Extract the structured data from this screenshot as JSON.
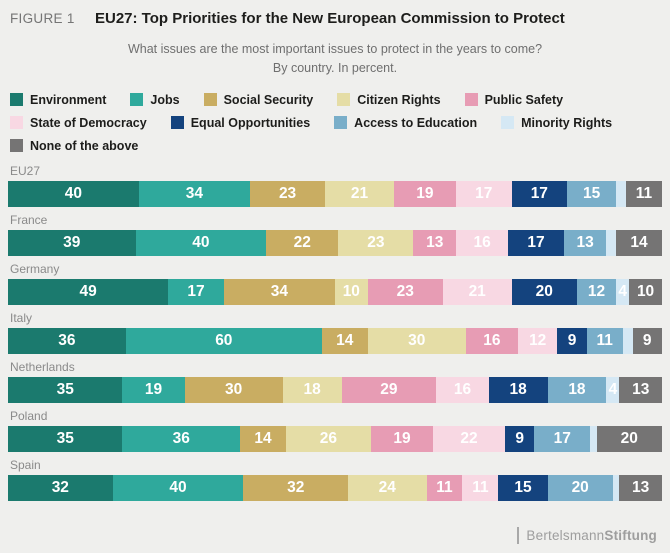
{
  "header": {
    "figure_label": "FIGURE 1",
    "title": "EU27: Top Priorities for the New European Commission to Protect"
  },
  "subtitle": {
    "line1": "What issues are the most important issues to protect in the years to come?",
    "line2": "By country. In percent."
  },
  "legend": {
    "row_groups": [
      [
        0,
        1,
        2,
        3,
        4
      ],
      [
        5,
        6,
        7,
        8
      ],
      [
        9
      ]
    ]
  },
  "chart_data": {
    "type": "bar",
    "stacked": true,
    "orientation": "horizontal",
    "unit": "percent",
    "grid": false,
    "legend_position": "top",
    "min_label_value": 4,
    "series": [
      {
        "name": "Environment",
        "color": "#1b7a6e"
      },
      {
        "name": "Jobs",
        "color": "#2fa99c"
      },
      {
        "name": "Social Security",
        "color": "#c9ad62"
      },
      {
        "name": "Citizen Rights",
        "color": "#e5dda6"
      },
      {
        "name": "Public Safety",
        "color": "#e79cb4"
      },
      {
        "name": "State of Democracy",
        "color": "#f8d8e3"
      },
      {
        "name": "Equal Opportunities",
        "color": "#14437e"
      },
      {
        "name": "Access to Education",
        "color": "#79aec9"
      },
      {
        "name": "Minority Rights",
        "color": "#d5e8f4"
      },
      {
        "name": "None of the above",
        "color": "#757474"
      }
    ],
    "categories": [
      "EU27",
      "France",
      "Germany",
      "Italy",
      "Netherlands",
      "Poland",
      "Spain"
    ],
    "rows": [
      {
        "country": "EU27",
        "values": [
          40,
          34,
          23,
          21,
          19,
          17,
          17,
          15,
          3,
          11
        ]
      },
      {
        "country": "France",
        "values": [
          39,
          40,
          22,
          23,
          13,
          16,
          17,
          13,
          3,
          14
        ]
      },
      {
        "country": "Germany",
        "values": [
          49,
          17,
          34,
          10,
          23,
          21,
          20,
          12,
          4,
          10
        ]
      },
      {
        "country": "Italy",
        "values": [
          36,
          60,
          14,
          30,
          16,
          12,
          9,
          11,
          3,
          9
        ]
      },
      {
        "country": "Netherlands",
        "values": [
          35,
          19,
          30,
          18,
          29,
          16,
          18,
          18,
          4,
          13
        ]
      },
      {
        "country": "Poland",
        "values": [
          35,
          36,
          14,
          26,
          19,
          22,
          9,
          17,
          2,
          20
        ]
      },
      {
        "country": "Spain",
        "values": [
          32,
          40,
          32,
          24,
          11,
          11,
          15,
          20,
          2,
          13
        ]
      }
    ]
  },
  "footer": {
    "brand_regular": "Bertelsmann",
    "brand_bold": "Stiftung"
  }
}
